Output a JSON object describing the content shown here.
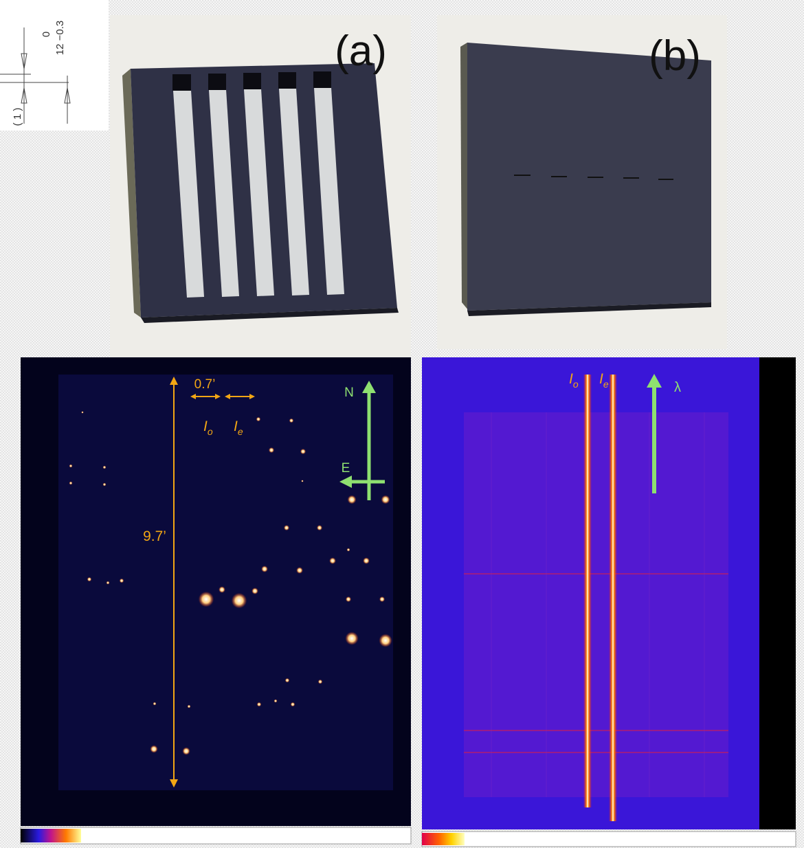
{
  "drawing": {
    "top_value": "0",
    "bottom_value": "12 −0.3",
    "side_label": "( 1 )"
  },
  "photo_a": {
    "label": "(a)"
  },
  "photo_b": {
    "label": "(b)"
  },
  "imaging": {
    "width_label": "0.7’",
    "height_label": "9.7’",
    "ordinary": {
      "main": "I",
      "sub": "o"
    },
    "extraordinary": {
      "main": "I",
      "sub": "e"
    },
    "north": "N",
    "east": "E"
  },
  "spectrum": {
    "ordinary": {
      "main": "I",
      "sub": "o"
    },
    "extraordinary": {
      "main": "I",
      "sub": "e"
    },
    "direction": "λ"
  }
}
